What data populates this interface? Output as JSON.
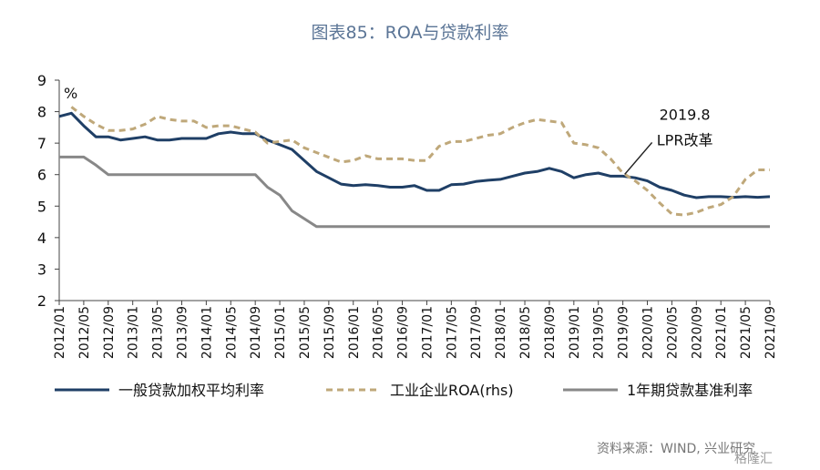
{
  "chart_data": {
    "type": "line",
    "title": "图表85：ROA与贷款利率",
    "unit_label": "%",
    "ylim": [
      2,
      9
    ],
    "yticks": [
      2,
      3,
      4,
      5,
      6,
      7,
      8,
      9
    ],
    "grid": false,
    "legend_position": "bottom",
    "x": [
      "2012/01",
      "2012/03",
      "2012/05",
      "2012/07",
      "2012/09",
      "2012/11",
      "2013/01",
      "2013/03",
      "2013/05",
      "2013/07",
      "2013/09",
      "2013/11",
      "2014/01",
      "2014/03",
      "2014/05",
      "2014/07",
      "2014/09",
      "2014/11",
      "2015/01",
      "2015/03",
      "2015/05",
      "2015/07",
      "2015/09",
      "2015/11",
      "2016/01",
      "2016/03",
      "2016/05",
      "2016/07",
      "2016/09",
      "2016/11",
      "2017/01",
      "2017/03",
      "2017/05",
      "2017/07",
      "2017/09",
      "2017/11",
      "2018/01",
      "2018/03",
      "2018/05",
      "2018/07",
      "2018/09",
      "2018/11",
      "2019/01",
      "2019/03",
      "2019/05",
      "2019/07",
      "2019/09",
      "2019/11",
      "2020/01",
      "2020/03",
      "2020/05",
      "2020/07",
      "2020/09",
      "2020/11",
      "2021/01",
      "2021/03",
      "2021/05",
      "2021/07",
      "2021/09"
    ],
    "xticks": [
      "2012/01",
      "2012/05",
      "2012/09",
      "2013/01",
      "2013/05",
      "2013/09",
      "2014/01",
      "2014/05",
      "2014/09",
      "2015/01",
      "2015/05",
      "2015/09",
      "2016/01",
      "2016/05",
      "2016/09",
      "2017/01",
      "2017/05",
      "2017/09",
      "2018/01",
      "2018/05",
      "2018/09",
      "2019/01",
      "2019/05",
      "2019/09",
      "2020/01",
      "2020/05",
      "2020/09",
      "2021/01",
      "2021/05",
      "2021/09"
    ],
    "series": [
      {
        "name": "一般贷款加权平均利率",
        "color": "#1f3f66",
        "style": "solid",
        "values": [
          7.85,
          7.95,
          7.55,
          7.2,
          7.2,
          7.1,
          7.15,
          7.2,
          7.1,
          7.1,
          7.15,
          7.15,
          7.15,
          7.3,
          7.35,
          7.3,
          7.3,
          7.1,
          6.95,
          6.8,
          6.45,
          6.1,
          5.9,
          5.7,
          5.65,
          5.68,
          5.65,
          5.6,
          5.6,
          5.65,
          5.5,
          5.5,
          5.68,
          5.7,
          5.78,
          5.82,
          5.85,
          5.95,
          6.05,
          6.1,
          6.2,
          6.1,
          5.9,
          6.0,
          6.05,
          5.95,
          5.95,
          5.9,
          5.8,
          5.6,
          5.5,
          5.35,
          5.27,
          5.3,
          5.3,
          5.28,
          5.3,
          5.28,
          5.3
        ]
      },
      {
        "name": "工业企业ROA(rhs)",
        "color": "#bfa87a",
        "style": "dashed",
        "values": [
          null,
          8.15,
          7.85,
          7.6,
          7.4,
          7.4,
          7.45,
          7.6,
          7.85,
          7.75,
          7.7,
          7.7,
          7.5,
          7.55,
          7.55,
          7.45,
          7.35,
          7.0,
          7.05,
          7.1,
          6.85,
          6.7,
          6.55,
          6.4,
          6.45,
          6.6,
          6.5,
          6.5,
          6.5,
          6.45,
          6.45,
          6.9,
          7.05,
          7.05,
          7.15,
          7.25,
          7.3,
          7.5,
          7.65,
          7.75,
          7.7,
          7.65,
          7.0,
          6.95,
          6.85,
          6.5,
          6.05,
          5.8,
          5.5,
          5.1,
          4.75,
          4.72,
          4.8,
          4.95,
          5.05,
          5.3,
          5.85,
          6.15,
          6.15
        ]
      },
      {
        "name": "1年期贷款基准利率",
        "color": "#888888",
        "style": "solid",
        "values": [
          6.56,
          6.56,
          6.56,
          6.3,
          6.0,
          6.0,
          6.0,
          6.0,
          6.0,
          6.0,
          6.0,
          6.0,
          6.0,
          6.0,
          6.0,
          6.0,
          6.0,
          5.6,
          5.35,
          4.85,
          4.6,
          4.35,
          4.35,
          4.35,
          4.35,
          4.35,
          4.35,
          4.35,
          4.35,
          4.35,
          4.35,
          4.35,
          4.35,
          4.35,
          4.35,
          4.35,
          4.35,
          4.35,
          4.35,
          4.35,
          4.35,
          4.35,
          4.35,
          4.35,
          4.35,
          4.35,
          4.35,
          4.35,
          4.35,
          4.35,
          4.35,
          4.35,
          4.35,
          4.35,
          4.35,
          4.35,
          4.35,
          4.35,
          4.35
        ]
      }
    ],
    "annotations": [
      {
        "text": "2019.8",
        "x": "2019/09",
        "y": 5.95
      },
      {
        "text": "LPR改革",
        "x": "2019/09",
        "y": 5.95
      }
    ],
    "source": "资料来源：WIND, 兴业研究"
  },
  "watermark": "格隆汇"
}
